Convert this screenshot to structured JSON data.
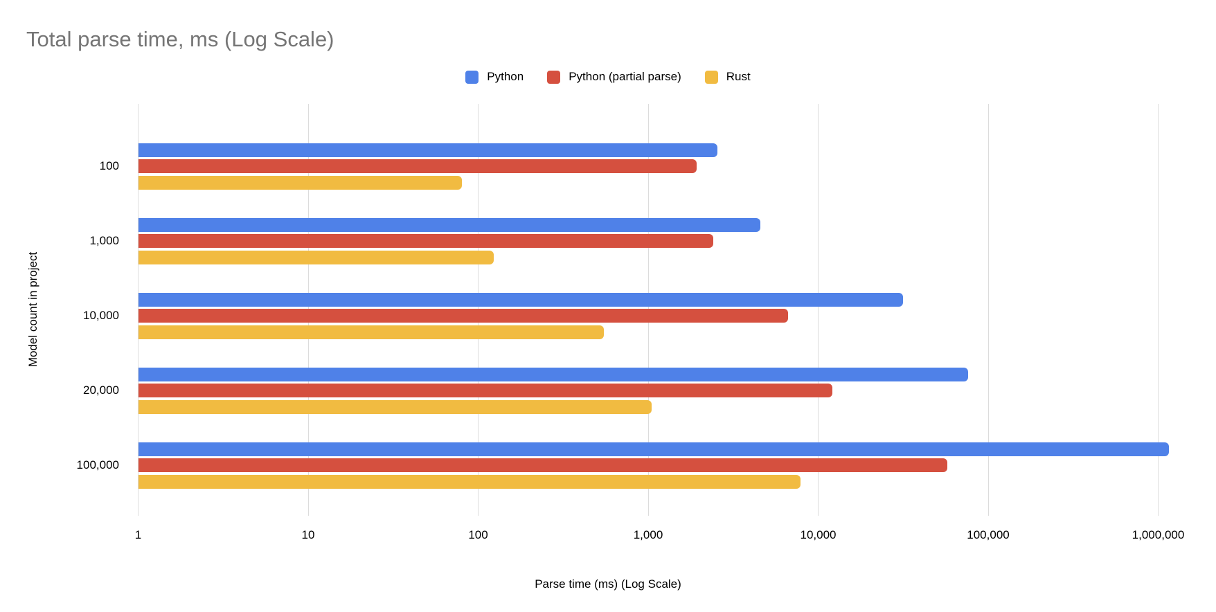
{
  "title": "Total parse time, ms (Log Scale)",
  "axis": {
    "x_title": "Parse time (ms) (Log Scale)",
    "y_title": "Model count in project"
  },
  "colors": {
    "python": "#4f81e8",
    "python_partial": "#d5503f",
    "rust": "#f1bb41",
    "gridline": "#dcdcdc",
    "title_gray": "#757575"
  },
  "chart_data": {
    "type": "bar",
    "orientation": "horizontal",
    "x_scale": "log",
    "title": "Total parse time, ms (Log Scale)",
    "xlabel": "Parse time (ms) (Log Scale)",
    "ylabel": "Model count in project",
    "categories": [
      "100",
      "1,000",
      "10,000",
      "20,000",
      "100,000"
    ],
    "series": [
      {
        "name": "Python",
        "color": "#4f81e8",
        "values": [
          2550,
          4560,
          31500,
          76000,
          1160000
        ]
      },
      {
        "name": "Python (partial parse)",
        "color": "#d5503f",
        "values": [
          1930,
          2420,
          6670,
          12100,
          57500
        ]
      },
      {
        "name": "Rust",
        "color": "#f1bb41",
        "values": [
          80,
          124,
          550,
          1050,
          7900
        ]
      }
    ],
    "xlim": [
      1,
      1000000
    ],
    "x_ticks": [
      "1",
      "10",
      "100",
      "1,000",
      "10,000",
      "100,000",
      "1,000,000"
    ],
    "grid": true,
    "legend_position": "top"
  }
}
